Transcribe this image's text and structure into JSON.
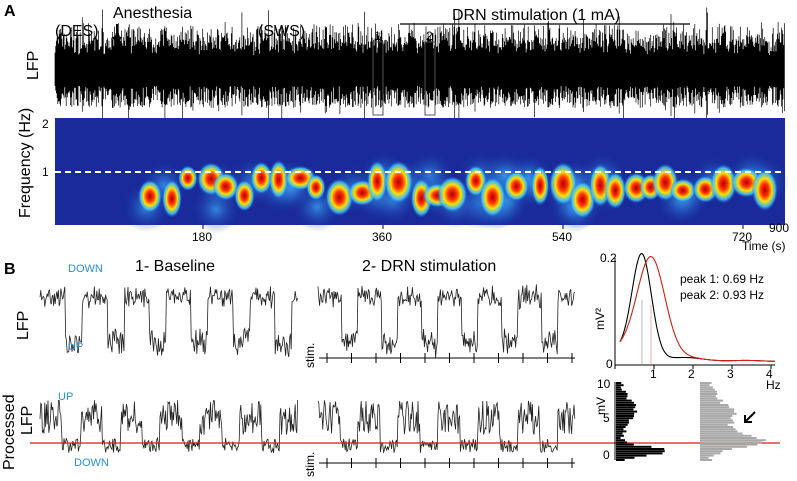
{
  "panel_a": {
    "label": "A",
    "des": "(DES)",
    "anesthesia": "Anesthesia",
    "sws": "(SWS)",
    "drn": "DRN stimulation (1 mA)",
    "window_1": "1",
    "window_2": "2",
    "lfp_label": "LFP",
    "spectrogram": {
      "y_label": "Frequency (Hz)",
      "y_ticks": [
        "2",
        "1"
      ],
      "x_ticks": [
        "180",
        "360",
        "540",
        "720",
        "900"
      ],
      "x_label": "Time (s)"
    }
  },
  "panel_b": {
    "label": "B",
    "baseline_title": "1- Baseline",
    "drn_title": "2- DRN stimulation",
    "lfp_label": "LFP",
    "processed_label": [
      "Processed",
      "LFP"
    ],
    "top_down": "DOWN",
    "top_up": "UP",
    "bottom_up": "UP",
    "bottom_down": "DOWN",
    "stim_top": "stim.",
    "stim_bottom": "stim.",
    "psd": {
      "y_label": "mV²",
      "y_ticks": [
        "0.2",
        "0"
      ],
      "x_ticks": [
        "1",
        "2",
        "3",
        "4"
      ],
      "x_unit": "Hz",
      "peak_1": "peak 1: 0.69 Hz",
      "peak_2": "peak 2: 0.93 Hz"
    },
    "histogram": {
      "y_label": "mV",
      "y_ticks": [
        "10",
        "5",
        "0"
      ]
    }
  }
}
